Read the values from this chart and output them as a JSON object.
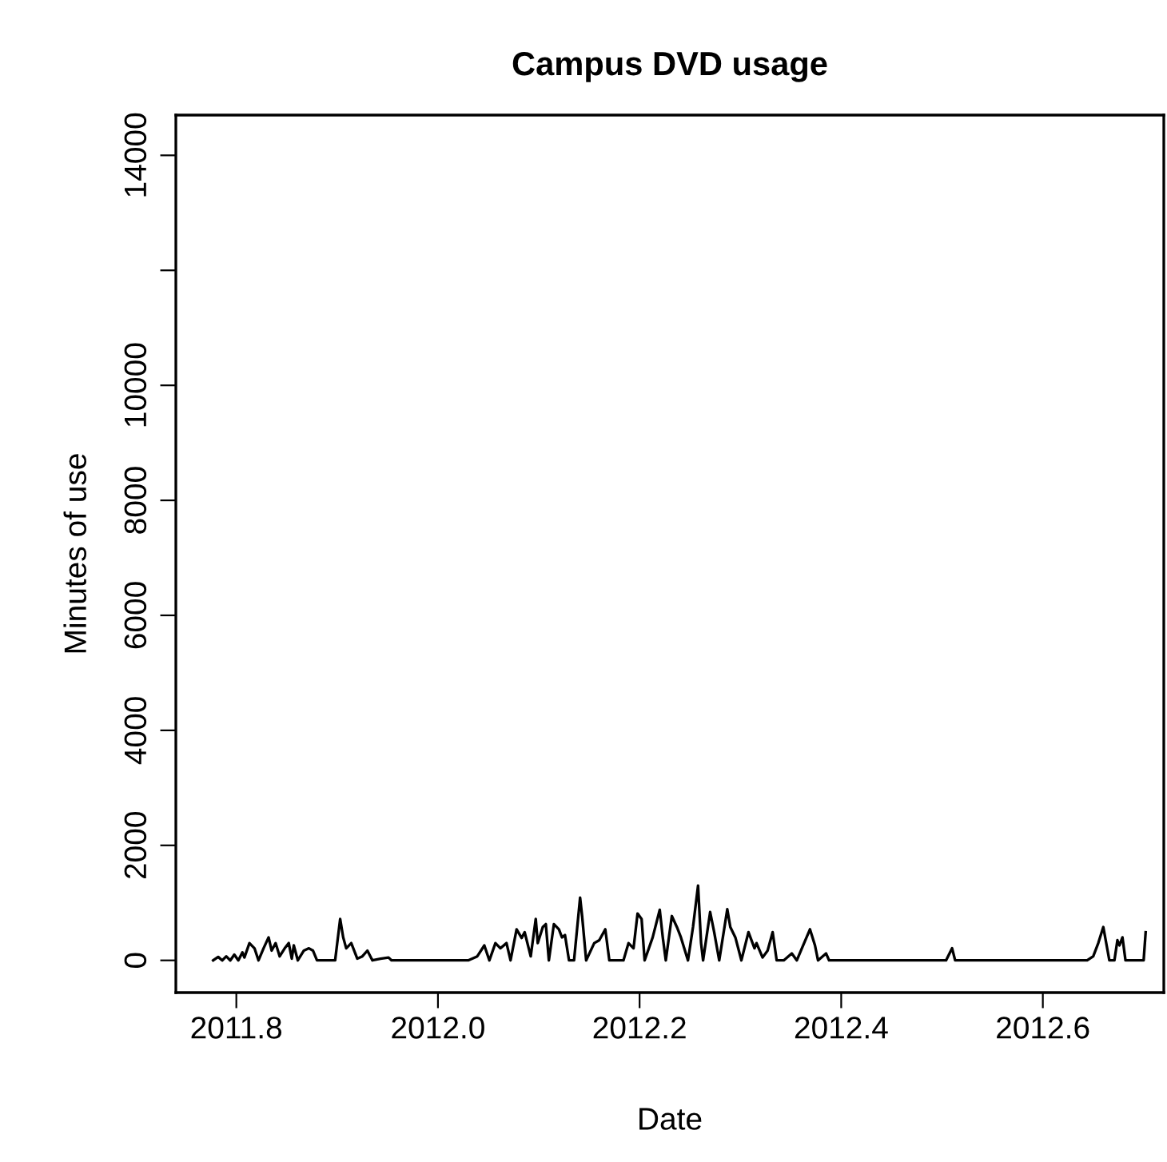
{
  "chart_data": {
    "type": "line",
    "title": "Campus DVD usage",
    "xlabel": "Date",
    "ylabel": "Minutes of use",
    "x": [
      2011.777,
      2011.782,
      2011.786,
      2011.79,
      2011.794,
      2011.798,
      2011.802,
      2011.806,
      2011.808,
      2011.813,
      2011.818,
      2011.822,
      2011.827,
      2011.832,
      2011.835,
      2011.839,
      2011.843,
      2011.848,
      2011.852,
      2011.855,
      2011.857,
      2011.861,
      2011.867,
      2011.872,
      2011.876,
      2011.88,
      2011.898,
      2011.903,
      2011.906,
      2011.909,
      2011.914,
      2011.92,
      2011.925,
      2011.93,
      2011.935,
      2011.943,
      2011.951,
      2011.954,
      2012.03,
      2012.039,
      2012.046,
      2012.051,
      2012.057,
      2012.062,
      2012.068,
      2012.072,
      2012.078,
      2012.083,
      2012.086,
      2012.092,
      2012.097,
      2012.099,
      2012.104,
      2012.107,
      2012.11,
      2012.115,
      2012.12,
      2012.123,
      2012.126,
      2012.13,
      2012.135,
      2012.141,
      2012.143,
      2012.147,
      2012.155,
      2012.16,
      2012.166,
      2012.17,
      2012.184,
      2012.189,
      2012.194,
      2012.198,
      2012.202,
      2012.205,
      2012.211,
      2012.213,
      2012.22,
      2012.223,
      2012.226,
      2012.232,
      2012.237,
      2012.241,
      2012.248,
      2012.253,
      2012.258,
      2012.261,
      2012.263,
      2012.27,
      2012.274,
      2012.279,
      2012.287,
      2012.29,
      2012.295,
      2012.301,
      2012.308,
      2012.314,
      2012.316,
      2012.322,
      2012.327,
      2012.332,
      2012.336,
      2012.343,
      2012.351,
      2012.356,
      2012.361,
      2012.369,
      2012.374,
      2012.377,
      2012.385,
      2012.388,
      2012.504,
      2012.51,
      2012.513,
      2012.644,
      2012.65,
      2012.655,
      2012.66,
      2012.666,
      2012.671,
      2012.674,
      2012.676,
      2012.679,
      2012.682,
      2012.7,
      2012.702
    ],
    "series": [
      {
        "color": "#000000",
        "values": [
          0,
          60,
          0,
          70,
          0,
          100,
          0,
          140,
          50,
          300,
          210,
          0,
          210,
          400,
          170,
          300,
          70,
          210,
          300,
          30,
          260,
          0,
          170,
          210,
          170,
          0,
          0,
          720,
          400,
          210,
          300,
          30,
          70,
          170,
          0,
          30,
          50,
          0,
          0,
          70,
          260,
          0,
          300,
          210,
          300,
          0,
          540,
          390,
          490,
          70,
          720,
          300,
          580,
          630,
          0,
          630,
          540,
          400,
          440,
          0,
          0,
          1090,
          770,
          0,
          300,
          350,
          540,
          0,
          0,
          300,
          210,
          815,
          720,
          0,
          300,
          400,
          880,
          400,
          0,
          770,
          580,
          400,
          0,
          580,
          1300,
          300,
          0,
          840,
          490,
          0,
          890,
          580,
          400,
          0,
          490,
          210,
          300,
          50,
          170,
          490,
          0,
          0,
          120,
          0,
          210,
          540,
          260,
          0,
          120,
          0,
          0,
          210,
          0,
          0,
          70,
          300,
          580,
          0,
          0,
          350,
          260,
          400,
          0,
          0,
          490
        ]
      }
    ],
    "xlim": [
      2011.74,
      2012.72
    ],
    "xticks": [
      {
        "value": 2011.8,
        "label": "2011.8"
      },
      {
        "value": 2012.0,
        "label": "2012.0"
      },
      {
        "value": 2012.2,
        "label": "2012.2"
      },
      {
        "value": 2012.4,
        "label": "2012.4"
      },
      {
        "value": 2012.6,
        "label": "2012.6"
      }
    ],
    "ylim": [
      -560,
      14700
    ],
    "yticks": [
      0,
      2000,
      4000,
      6000,
      8000,
      10000,
      {
        "value": 12000,
        "label": null
      },
      14000
    ],
    "grid": false,
    "legend": false,
    "line_style": "solid",
    "marker": "none"
  }
}
